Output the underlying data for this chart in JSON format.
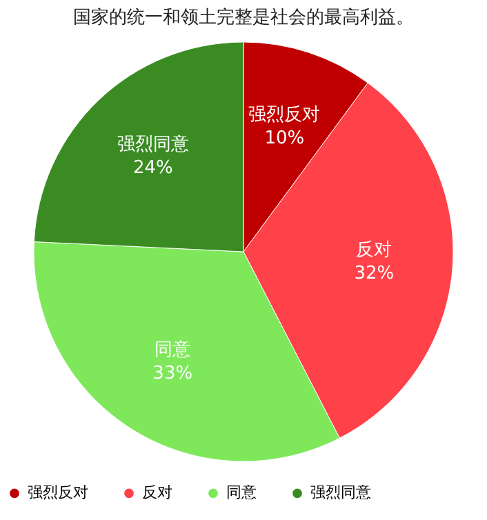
{
  "chart_data": {
    "type": "pie",
    "title": "国家的统一和领土完整是社会的最高利益。",
    "categories": [
      "强烈反对",
      "反对",
      "同意",
      "强烈同意"
    ],
    "values": [
      10,
      32,
      33,
      24
    ],
    "value_labels": [
      "10%",
      "32%",
      "33%",
      "24%"
    ],
    "colors": [
      "#c00000",
      "#ff4149",
      "#7ee85a",
      "#3a8c22"
    ],
    "legend": "bottom"
  }
}
